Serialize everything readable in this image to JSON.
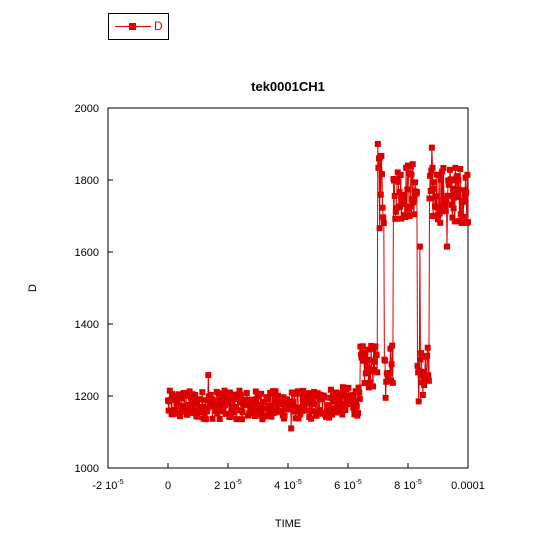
{
  "chart_data": {
    "type": "line",
    "title": "tek0001CH1",
    "xlabel": "TIME",
    "ylabel": "D",
    "xlim": [
      -2e-05,
      0.0001
    ],
    "ylim": [
      1000,
      2000
    ],
    "x_ticks": [
      {
        "value": -2e-05,
        "base": "-2 10",
        "exp": "-5"
      },
      {
        "value": 0,
        "base": "0",
        "exp": ""
      },
      {
        "value": 2e-05,
        "base": "2 10",
        "exp": "-5"
      },
      {
        "value": 4e-05,
        "base": "4 10",
        "exp": "-5"
      },
      {
        "value": 6e-05,
        "base": "6 10",
        "exp": "-5"
      },
      {
        "value": 8e-05,
        "base": "8 10",
        "exp": "-5"
      },
      {
        "value": 0.0001,
        "base": "0.0001",
        "exp": ""
      }
    ],
    "y_ticks": [
      "1000",
      "1200",
      "1400",
      "1600",
      "1800",
      "2000"
    ],
    "legend": {
      "position": "top-left",
      "entries": [
        "D"
      ]
    },
    "grid": false,
    "color": "#dd0000",
    "marker": "square",
    "series": [
      {
        "name": "D",
        "x_range": [
          0,
          0.0001
        ],
        "points": 500,
        "segments": [
          {
            "x": [
              0,
              5.4e-05
            ],
            "y_mean": 1175,
            "y_spread": 40
          },
          {
            "x": [
              5.4e-05,
              6.4e-05
            ],
            "y_mean": 1185,
            "y_spread": 40
          },
          {
            "x": [
              6.4e-05,
              7e-05
            ],
            "y_mean": 1280,
            "y_spread": 60
          },
          {
            "x": [
              7e-05,
              7.2e-05
            ],
            "y_mean": 1780,
            "y_spread": 120
          },
          {
            "x": [
              7.2e-05,
              7.5e-05
            ],
            "y_mean": 1290,
            "y_spread": 60
          },
          {
            "x": [
              7.5e-05,
              8.3e-05
            ],
            "y_mean": 1770,
            "y_spread": 80
          },
          {
            "x": [
              8.3e-05,
              8.7e-05
            ],
            "y_mean": 1260,
            "y_spread": 80
          },
          {
            "x": [
              8.7e-05,
              0.0001
            ],
            "y_mean": 1760,
            "y_spread": 80
          }
        ],
        "extremes": [
          {
            "x": 6.99e-05,
            "y": 1900
          },
          {
            "x": 7.03e-05,
            "y": 1860
          },
          {
            "x": 7.25e-05,
            "y": 1195
          },
          {
            "x": 1.35e-05,
            "y": 1258
          },
          {
            "x": 4.1e-05,
            "y": 1110
          },
          {
            "x": 8.8e-05,
            "y": 1890
          },
          {
            "x": 8.4e-05,
            "y": 1615
          },
          {
            "x": 9.3e-05,
            "y": 1615
          }
        ]
      }
    ]
  }
}
